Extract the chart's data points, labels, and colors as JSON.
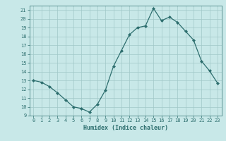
{
  "x": [
    0,
    1,
    2,
    3,
    4,
    5,
    6,
    7,
    8,
    9,
    10,
    11,
    12,
    13,
    14,
    15,
    16,
    17,
    18,
    19,
    20,
    21,
    22,
    23
  ],
  "y": [
    13,
    12.8,
    12.3,
    11.6,
    10.8,
    10.0,
    9.8,
    9.4,
    10.3,
    11.9,
    14.6,
    16.4,
    18.2,
    19.0,
    19.2,
    21.2,
    19.8,
    20.2,
    19.6,
    18.6,
    17.6,
    15.2,
    14.1,
    12.7
  ],
  "line_color": "#2d6e6e",
  "marker_color": "#2d6e6e",
  "bg_color": "#c8e8e8",
  "grid_color": "#a0c8c8",
  "xlabel": "Humidex (Indice chaleur)",
  "ylim": [
    9,
    21.5
  ],
  "xlim": [
    -0.5,
    23.5
  ],
  "yticks": [
    9,
    10,
    11,
    12,
    13,
    14,
    15,
    16,
    17,
    18,
    19,
    20,
    21
  ],
  "xticks": [
    0,
    1,
    2,
    3,
    4,
    5,
    6,
    7,
    8,
    9,
    10,
    11,
    12,
    13,
    14,
    15,
    16,
    17,
    18,
    19,
    20,
    21,
    22,
    23
  ],
  "font_color": "#2d6e6e"
}
